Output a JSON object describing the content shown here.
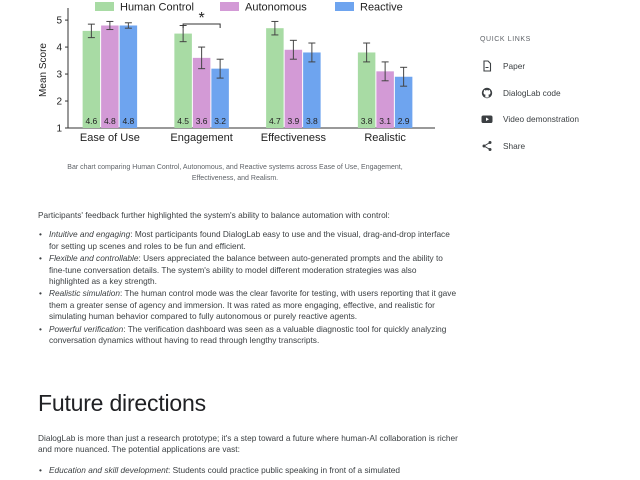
{
  "chart_data": {
    "type": "bar",
    "categories": [
      "Ease of Use",
      "Engagement",
      "Effectiveness",
      "Realistic"
    ],
    "series": [
      {
        "name": "Human Control",
        "values": [
          4.6,
          4.5,
          4.7,
          3.8
        ],
        "errors": [
          0.25,
          0.3,
          0.25,
          0.35
        ],
        "color": "#a8dba4"
      },
      {
        "name": "Autonomous",
        "values": [
          4.8,
          3.6,
          3.9,
          3.1
        ],
        "errors": [
          0.15,
          0.4,
          0.35,
          0.35
        ],
        "color": "#d39ad6"
      },
      {
        "name": "Reactive",
        "values": [
          4.8,
          3.2,
          3.8,
          2.9
        ],
        "errors": [
          0.1,
          0.35,
          0.35,
          0.35
        ],
        "color": "#6ea4ef"
      }
    ],
    "value_labels": [
      [
        "4.6",
        "4.5",
        "4.7",
        "3.8"
      ],
      [
        "4.8",
        "3.6",
        "3.9",
        "3.1"
      ],
      [
        "4.8",
        "3.2",
        "3.8",
        "2.9"
      ]
    ],
    "ylabel": "Mean Score",
    "ylim": [
      1,
      5.3
    ],
    "yticks": [
      "1",
      "2",
      "3",
      "4",
      "5"
    ],
    "significance_marker": "*",
    "legend_position": "top-center",
    "grid": false
  },
  "caption": "Bar chart comparing Human Control, Autonomous, and Reactive systems across Ease of Use, Engagement, Effectiveness, and Realism.",
  "article": {
    "intro": "Participants' feedback further highlighted the system's ability to balance automation with control:",
    "bullets": [
      {
        "term": "Intuitive and engaging",
        "text": ": Most participants found DialogLab easy to use and the visual, drag-and-drop interface for setting up scenes and roles to be fun and efficient."
      },
      {
        "term": "Flexible and controllable",
        "text": ": Users appreciated the balance between auto-generated prompts and the ability to fine-tune conversation details. The system's ability to model different moderation strategies was also highlighted as a key strength."
      },
      {
        "term": "Realistic simulation",
        "text": ": The human control mode was the clear favorite for testing, with users reporting that it gave them a greater sense of agency and immersion. It was rated as more engaging, effective, and realistic for simulating human behavior compared to fully autonomous or purely reactive agents."
      },
      {
        "term": "Powerful verification",
        "text": ": The verification dashboard was seen as a valuable diagnostic tool for quickly analyzing conversation dynamics without having to read through lengthy transcripts."
      }
    ]
  },
  "future": {
    "title": "Future directions",
    "paragraph": "DialogLab is more than just a research prototype; it's a step toward a future where human-AI collaboration is richer and more nuanced. The potential applications are vast:",
    "bullets": [
      {
        "term": "Education and skill development",
        "text": ": Students could practice public speaking in front of a simulated"
      }
    ]
  },
  "quick_links": {
    "title": "QUICK LINKS",
    "items": [
      {
        "label": "Paper",
        "icon": "document-icon"
      },
      {
        "label": "DialogLab code",
        "icon": "github-icon"
      },
      {
        "label": "Video demonstration",
        "icon": "youtube-icon"
      },
      {
        "label": "Share",
        "icon": "share-icon"
      }
    ]
  }
}
